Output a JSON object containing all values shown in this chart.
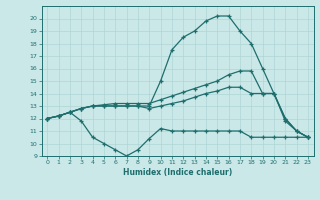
{
  "xlabel": "Humidex (Indice chaleur)",
  "ylim": [
    9,
    21
  ],
  "xlim": [
    -0.5,
    23.5
  ],
  "yticks": [
    9,
    10,
    11,
    12,
    13,
    14,
    15,
    16,
    17,
    18,
    19,
    20
  ],
  "xticks": [
    0,
    1,
    2,
    3,
    4,
    5,
    6,
    7,
    8,
    9,
    10,
    11,
    12,
    13,
    14,
    15,
    16,
    17,
    18,
    19,
    20,
    21,
    22,
    23
  ],
  "bg_color": "#cbe8e8",
  "grid_color": "#afd4d4",
  "line_color": "#1e6e6e",
  "line_top_x": [
    0,
    1,
    2,
    3,
    4,
    5,
    6,
    7,
    8,
    9,
    10,
    11,
    12,
    13,
    14,
    15,
    16,
    17,
    18,
    19,
    20,
    21,
    22,
    23
  ],
  "line_top_y": [
    12.0,
    12.2,
    12.5,
    12.8,
    13.0,
    13.0,
    13.0,
    13.0,
    13.0,
    13.0,
    15.0,
    17.5,
    18.5,
    19.0,
    19.8,
    20.2,
    20.2,
    19.0,
    18.0,
    16.0,
    14.0,
    11.8,
    11.0,
    10.5
  ],
  "line_mid1_x": [
    0,
    1,
    2,
    3,
    4,
    5,
    6,
    7,
    8,
    9,
    10,
    11,
    12,
    13,
    14,
    15,
    16,
    17,
    18,
    19,
    20,
    21,
    22,
    23
  ],
  "line_mid1_y": [
    12.0,
    12.2,
    12.5,
    12.8,
    13.0,
    13.1,
    13.2,
    13.2,
    13.2,
    13.2,
    13.5,
    13.8,
    14.1,
    14.4,
    14.7,
    15.0,
    15.5,
    15.8,
    15.8,
    14.0,
    14.0,
    12.0,
    11.0,
    10.5
  ],
  "line_mid2_x": [
    0,
    1,
    2,
    3,
    4,
    5,
    6,
    7,
    8,
    9,
    10,
    11,
    12,
    13,
    14,
    15,
    16,
    17,
    18,
    19,
    20,
    21,
    22,
    23
  ],
  "line_mid2_y": [
    12.0,
    12.2,
    12.5,
    12.8,
    13.0,
    13.0,
    13.0,
    13.0,
    13.0,
    12.8,
    13.0,
    13.2,
    13.4,
    13.7,
    14.0,
    14.2,
    14.5,
    14.5,
    14.0,
    14.0,
    14.0,
    12.0,
    11.0,
    10.5
  ],
  "line_bot_x": [
    0,
    1,
    2,
    3,
    4,
    5,
    6,
    7,
    8,
    9,
    10,
    11,
    12,
    13,
    14,
    15,
    16,
    17,
    18,
    19,
    20,
    21,
    22,
    23
  ],
  "line_bot_y": [
    12.0,
    12.2,
    12.5,
    11.8,
    10.5,
    10.0,
    9.5,
    9.0,
    9.5,
    10.4,
    11.2,
    11.0,
    11.0,
    11.0,
    11.0,
    11.0,
    11.0,
    11.0,
    10.5,
    10.5,
    10.5,
    10.5,
    10.5,
    10.5
  ]
}
